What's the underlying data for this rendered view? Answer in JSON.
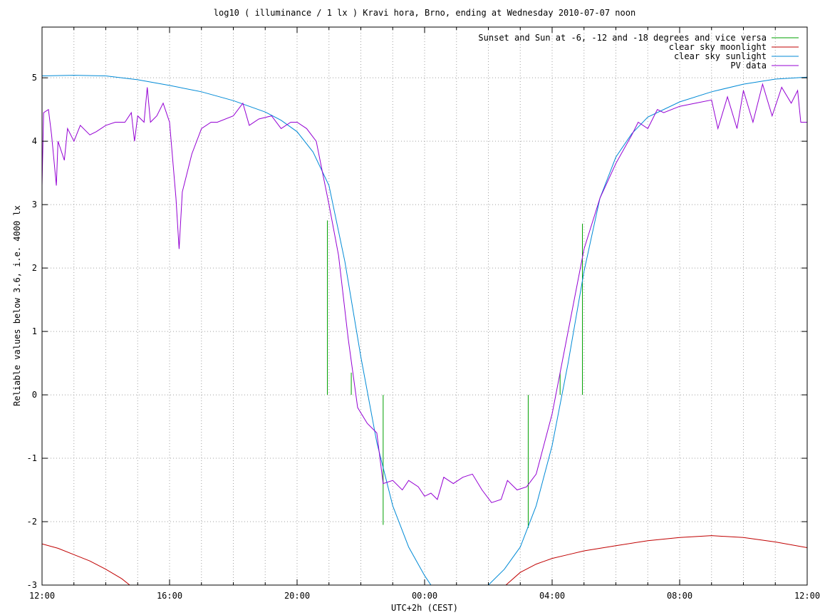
{
  "chart_data": {
    "type": "line",
    "title": "log10 ( illuminance / 1 lx ) Kravi hora, Brno, ending at Wednesday 2010-07-07 noon",
    "xlabel": "UTC+2h (CEST)",
    "ylabel": "Reliable values below 3.6, i.e. 4000 lx",
    "xlim": [
      0,
      24
    ],
    "ylim": [
      -3,
      5.8
    ],
    "grid": true,
    "legend_position": "top-right",
    "x_ticks": [
      {
        "value": 0,
        "label": "12:00"
      },
      {
        "value": 4,
        "label": "16:00"
      },
      {
        "value": 8,
        "label": "20:00"
      },
      {
        "value": 12,
        "label": "00:00"
      },
      {
        "value": 16,
        "label": "04:00"
      },
      {
        "value": 20,
        "label": "08:00"
      },
      {
        "value": 24,
        "label": "12:00"
      }
    ],
    "y_ticks": [
      {
        "value": 5,
        "label": "5"
      },
      {
        "value": 4,
        "label": "4"
      },
      {
        "value": 3,
        "label": "3"
      },
      {
        "value": 2,
        "label": "2"
      },
      {
        "value": 1,
        "label": "1"
      },
      {
        "value": 0,
        "label": "0"
      },
      {
        "value": -1,
        "label": "-1"
      },
      {
        "value": -2,
        "label": "-2"
      },
      {
        "value": -3,
        "label": "-3"
      }
    ],
    "x_minor_step": 1,
    "series": [
      {
        "name": "Sunset and Sun at -6, -12 and -18 degrees and vice versa",
        "color": "#00a000",
        "kind": "impulses",
        "points": [
          [
            8.95,
            2.75
          ],
          [
            9.7,
            0.35
          ],
          [
            10.7,
            -2.05
          ],
          [
            12.65,
            0
          ],
          [
            13.4,
            0
          ],
          [
            15.25,
            -2.1
          ],
          [
            16.25,
            0.35
          ],
          [
            16.95,
            2.7
          ]
        ]
      },
      {
        "name": "clear sky moonlight",
        "color": "#c00000",
        "kind": "line",
        "points": [
          [
            0,
            -2.35
          ],
          [
            0.5,
            -2.42
          ],
          [
            1,
            -2.52
          ],
          [
            1.5,
            -2.62
          ],
          [
            2,
            -2.75
          ],
          [
            2.5,
            -2.9
          ],
          [
            2.75,
            -3.0
          ],
          [
            14.55,
            -3.0
          ],
          [
            15,
            -2.8
          ],
          [
            15.5,
            -2.67
          ],
          [
            16,
            -2.58
          ],
          [
            16.5,
            -2.52
          ],
          [
            17,
            -2.46
          ],
          [
            18,
            -2.38
          ],
          [
            19,
            -2.3
          ],
          [
            20,
            -2.25
          ],
          [
            21,
            -2.22
          ],
          [
            22,
            -2.25
          ],
          [
            23,
            -2.32
          ],
          [
            24,
            -2.41
          ]
        ]
      },
      {
        "name": "clear sky sunlight",
        "color": "#008ad6",
        "kind": "line",
        "points": [
          [
            0,
            5.03
          ],
          [
            1,
            5.04
          ],
          [
            2,
            5.03
          ],
          [
            3,
            4.97
          ],
          [
            4,
            4.88
          ],
          [
            5,
            4.78
          ],
          [
            6,
            4.64
          ],
          [
            7,
            4.46
          ],
          [
            7.5,
            4.33
          ],
          [
            8,
            4.15
          ],
          [
            8.5,
            3.83
          ],
          [
            9,
            3.3
          ],
          [
            9.5,
            2.1
          ],
          [
            10,
            0.6
          ],
          [
            10.5,
            -0.75
          ],
          [
            11,
            -1.75
          ],
          [
            11.5,
            -2.4
          ],
          [
            12,
            -2.85
          ],
          [
            12.2,
            -3.0
          ],
          [
            14.0,
            -3.0
          ],
          [
            14.5,
            -2.75
          ],
          [
            15,
            -2.4
          ],
          [
            15.5,
            -1.75
          ],
          [
            16,
            -0.8
          ],
          [
            16.5,
            0.5
          ],
          [
            17,
            1.95
          ],
          [
            17.5,
            3.1
          ],
          [
            18,
            3.75
          ],
          [
            18.5,
            4.12
          ],
          [
            19,
            4.38
          ],
          [
            20,
            4.62
          ],
          [
            21,
            4.78
          ],
          [
            22,
            4.9
          ],
          [
            23,
            4.98
          ],
          [
            24,
            5.01
          ]
        ]
      },
      {
        "name": "PV data",
        "color": "#9400d3",
        "kind": "line",
        "points": [
          [
            0,
            3.3
          ],
          [
            0.05,
            4.45
          ],
          [
            0.2,
            4.5
          ],
          [
            0.3,
            4.1
          ],
          [
            0.45,
            3.3
          ],
          [
            0.5,
            4.0
          ],
          [
            0.7,
            3.7
          ],
          [
            0.8,
            4.2
          ],
          [
            1,
            4.0
          ],
          [
            1.2,
            4.25
          ],
          [
            1.5,
            4.1
          ],
          [
            1.7,
            4.15
          ],
          [
            2,
            4.25
          ],
          [
            2.3,
            4.3
          ],
          [
            2.6,
            4.3
          ],
          [
            2.8,
            4.45
          ],
          [
            2.9,
            4.0
          ],
          [
            3,
            4.4
          ],
          [
            3.2,
            4.3
          ],
          [
            3.3,
            4.85
          ],
          [
            3.4,
            4.3
          ],
          [
            3.6,
            4.4
          ],
          [
            3.8,
            4.6
          ],
          [
            4,
            4.3
          ],
          [
            4.2,
            3.1
          ],
          [
            4.3,
            2.3
          ],
          [
            4.4,
            3.2
          ],
          [
            4.5,
            3.4
          ],
          [
            4.7,
            3.8
          ],
          [
            5,
            4.2
          ],
          [
            5.3,
            4.3
          ],
          [
            5.5,
            4.3
          ],
          [
            6,
            4.4
          ],
          [
            6.3,
            4.6
          ],
          [
            6.5,
            4.25
          ],
          [
            6.8,
            4.35
          ],
          [
            7.2,
            4.4
          ],
          [
            7.5,
            4.2
          ],
          [
            7.8,
            4.3
          ],
          [
            8,
            4.3
          ],
          [
            8.3,
            4.2
          ],
          [
            8.6,
            4.0
          ],
          [
            8.8,
            3.5
          ],
          [
            9,
            3.0
          ],
          [
            9.3,
            2.2
          ],
          [
            9.6,
            0.9
          ],
          [
            9.9,
            -0.2
          ],
          [
            10.2,
            -0.45
          ],
          [
            10.5,
            -0.6
          ],
          [
            10.7,
            -1.4
          ],
          [
            11,
            -1.35
          ],
          [
            11.3,
            -1.5
          ],
          [
            11.5,
            -1.35
          ],
          [
            11.8,
            -1.45
          ],
          [
            12,
            -1.6
          ],
          [
            12.2,
            -1.55
          ],
          [
            12.4,
            -1.65
          ],
          [
            12.6,
            -1.3
          ],
          [
            12.9,
            -1.4
          ],
          [
            13.2,
            -1.3
          ],
          [
            13.5,
            -1.25
          ],
          [
            13.8,
            -1.5
          ],
          [
            14.1,
            -1.7
          ],
          [
            14.4,
            -1.65
          ],
          [
            14.6,
            -1.35
          ],
          [
            14.9,
            -1.5
          ],
          [
            15.2,
            -1.45
          ],
          [
            15.5,
            -1.25
          ],
          [
            16,
            -0.3
          ],
          [
            16.5,
            1.0
          ],
          [
            17,
            2.3
          ],
          [
            17.5,
            3.1
          ],
          [
            18,
            3.65
          ],
          [
            18.5,
            4.1
          ],
          [
            18.7,
            4.3
          ],
          [
            19,
            4.2
          ],
          [
            19.3,
            4.5
          ],
          [
            19.5,
            4.45
          ],
          [
            20,
            4.55
          ],
          [
            20.5,
            4.6
          ],
          [
            21,
            4.65
          ],
          [
            21.2,
            4.2
          ],
          [
            21.5,
            4.7
          ],
          [
            21.8,
            4.2
          ],
          [
            22,
            4.8
          ],
          [
            22.3,
            4.3
          ],
          [
            22.6,
            4.9
          ],
          [
            22.9,
            4.4
          ],
          [
            23.2,
            4.85
          ],
          [
            23.5,
            4.6
          ],
          [
            23.7,
            4.8
          ],
          [
            23.8,
            4.3
          ],
          [
            24,
            4.3
          ]
        ]
      }
    ]
  }
}
